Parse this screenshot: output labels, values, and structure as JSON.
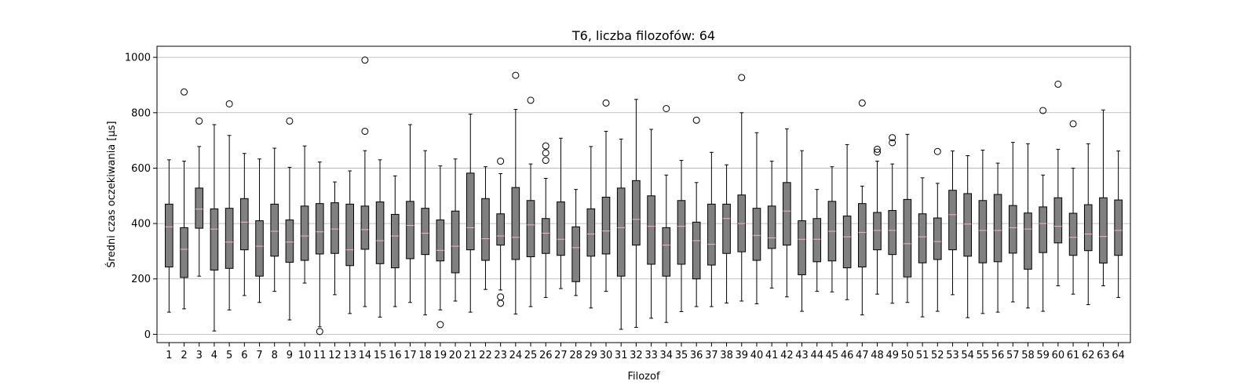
{
  "chart_data": {
    "type": "boxplot",
    "title": "T6, liczba filozofów: 64",
    "xlabel": "Filozof",
    "ylabel": "Średni czas oczekiwania [µs]",
    "ylim": [
      -30,
      1040
    ],
    "yticks": [
      0,
      200,
      400,
      600,
      800,
      1000
    ],
    "grid": "horizontal",
    "colors": {
      "box_fill": "#808080",
      "median": "#f4b6c2",
      "edge": "#000000",
      "grid": "#b0b0b0"
    },
    "categories": [
      "1",
      "2",
      "3",
      "4",
      "5",
      "6",
      "7",
      "8",
      "9",
      "10",
      "11",
      "12",
      "13",
      "14",
      "15",
      "16",
      "17",
      "18",
      "19",
      "20",
      "21",
      "22",
      "23",
      "24",
      "25",
      "26",
      "27",
      "28",
      "29",
      "30",
      "31",
      "32",
      "33",
      "34",
      "35",
      "36",
      "37",
      "38",
      "39",
      "40",
      "41",
      "42",
      "43",
      "44",
      "45",
      "46",
      "47",
      "48",
      "49",
      "50",
      "51",
      "52",
      "53",
      "54",
      "55",
      "56",
      "57",
      "58",
      "59",
      "60",
      "61",
      "62",
      "63",
      "64"
    ],
    "boxes": [
      {
        "whislo": 80,
        "q1": 243,
        "med": 388,
        "q3": 470,
        "whishi": 630,
        "fliers": []
      },
      {
        "whislo": 92,
        "q1": 205,
        "med": 307,
        "q3": 385,
        "whishi": 625,
        "fliers": [
          875
        ]
      },
      {
        "whislo": 210,
        "q1": 383,
        "med": 452,
        "q3": 528,
        "whishi": 678,
        "fliers": [
          770
        ]
      },
      {
        "whislo": 12,
        "q1": 232,
        "med": 380,
        "q3": 453,
        "whishi": 757,
        "fliers": []
      },
      {
        "whislo": 88,
        "q1": 238,
        "med": 333,
        "q3": 455,
        "whishi": 718,
        "fliers": [
          832
        ]
      },
      {
        "whislo": 140,
        "q1": 305,
        "med": 405,
        "q3": 490,
        "whishi": 653,
        "fliers": []
      },
      {
        "whislo": 115,
        "q1": 210,
        "med": 318,
        "q3": 410,
        "whishi": 633,
        "fliers": []
      },
      {
        "whislo": 155,
        "q1": 282,
        "med": 372,
        "q3": 470,
        "whishi": 672,
        "fliers": []
      },
      {
        "whislo": 52,
        "q1": 260,
        "med": 333,
        "q3": 413,
        "whishi": 603,
        "fliers": [
          770
        ]
      },
      {
        "whislo": 185,
        "q1": 267,
        "med": 355,
        "q3": 463,
        "whishi": 680,
        "fliers": []
      },
      {
        "whislo": 27,
        "q1": 290,
        "med": 370,
        "q3": 472,
        "whishi": 622,
        "fliers": [
          10
        ]
      },
      {
        "whislo": 143,
        "q1": 292,
        "med": 380,
        "q3": 475,
        "whishi": 550,
        "fliers": []
      },
      {
        "whislo": 75,
        "q1": 248,
        "med": 305,
        "q3": 470,
        "whishi": 590,
        "fliers": []
      },
      {
        "whislo": 100,
        "q1": 307,
        "med": 378,
        "q3": 463,
        "whishi": 663,
        "fliers": [
          733,
          990
        ]
      },
      {
        "whislo": 62,
        "q1": 255,
        "med": 338,
        "q3": 478,
        "whishi": 630,
        "fliers": []
      },
      {
        "whislo": 100,
        "q1": 240,
        "med": 355,
        "q3": 433,
        "whishi": 572,
        "fliers": []
      },
      {
        "whislo": 115,
        "q1": 273,
        "med": 393,
        "q3": 480,
        "whishi": 757,
        "fliers": []
      },
      {
        "whislo": 70,
        "q1": 288,
        "med": 365,
        "q3": 455,
        "whishi": 663,
        "fliers": []
      },
      {
        "whislo": 88,
        "q1": 265,
        "med": 303,
        "q3": 413,
        "whishi": 608,
        "fliers": [
          35
        ]
      },
      {
        "whislo": 120,
        "q1": 222,
        "med": 318,
        "q3": 445,
        "whishi": 633,
        "fliers": []
      },
      {
        "whislo": 80,
        "q1": 305,
        "med": 385,
        "q3": 582,
        "whishi": 795,
        "fliers": []
      },
      {
        "whislo": 162,
        "q1": 267,
        "med": 345,
        "q3": 490,
        "whishi": 605,
        "fliers": []
      },
      {
        "whislo": 160,
        "q1": 322,
        "med": 355,
        "q3": 435,
        "whishi": 580,
        "fliers": [
          112,
          135,
          625
        ]
      },
      {
        "whislo": 73,
        "q1": 270,
        "med": 350,
        "q3": 530,
        "whishi": 812,
        "fliers": [
          935
        ]
      },
      {
        "whislo": 100,
        "q1": 280,
        "med": 395,
        "q3": 483,
        "whishi": 615,
        "fliers": [
          845
        ]
      },
      {
        "whislo": 133,
        "q1": 292,
        "med": 365,
        "q3": 418,
        "whishi": 563,
        "fliers": [
          628,
          655,
          680
        ]
      },
      {
        "whislo": 165,
        "q1": 285,
        "med": 343,
        "q3": 478,
        "whishi": 708,
        "fliers": []
      },
      {
        "whislo": 140,
        "q1": 190,
        "med": 313,
        "q3": 388,
        "whishi": 523,
        "fliers": []
      },
      {
        "whislo": 95,
        "q1": 282,
        "med": 362,
        "q3": 453,
        "whishi": 678,
        "fliers": []
      },
      {
        "whislo": 155,
        "q1": 290,
        "med": 373,
        "q3": 495,
        "whishi": 733,
        "fliers": [
          835
        ]
      },
      {
        "whislo": 18,
        "q1": 210,
        "med": 385,
        "q3": 528,
        "whishi": 705,
        "fliers": []
      },
      {
        "whislo": 25,
        "q1": 322,
        "med": 415,
        "q3": 555,
        "whishi": 848,
        "fliers": []
      },
      {
        "whislo": 58,
        "q1": 253,
        "med": 390,
        "q3": 500,
        "whishi": 740,
        "fliers": []
      },
      {
        "whislo": 43,
        "q1": 210,
        "med": 322,
        "q3": 385,
        "whishi": 575,
        "fliers": [
          815
        ]
      },
      {
        "whislo": 82,
        "q1": 253,
        "med": 390,
        "q3": 483,
        "whishi": 628,
        "fliers": []
      },
      {
        "whislo": 100,
        "q1": 200,
        "med": 338,
        "q3": 405,
        "whishi": 548,
        "fliers": [
          773
        ]
      },
      {
        "whislo": 100,
        "q1": 250,
        "med": 325,
        "q3": 470,
        "whishi": 657,
        "fliers": []
      },
      {
        "whislo": 113,
        "q1": 292,
        "med": 418,
        "q3": 470,
        "whishi": 612,
        "fliers": []
      },
      {
        "whislo": 120,
        "q1": 298,
        "med": 400,
        "q3": 503,
        "whishi": 800,
        "fliers": [
          927
        ]
      },
      {
        "whislo": 110,
        "q1": 267,
        "med": 357,
        "q3": 455,
        "whishi": 728,
        "fliers": []
      },
      {
        "whislo": 167,
        "q1": 310,
        "med": 348,
        "q3": 463,
        "whishi": 625,
        "fliers": []
      },
      {
        "whislo": 135,
        "q1": 322,
        "med": 445,
        "q3": 548,
        "whishi": 742,
        "fliers": []
      },
      {
        "whislo": 83,
        "q1": 215,
        "med": 343,
        "q3": 410,
        "whishi": 663,
        "fliers": []
      },
      {
        "whislo": 155,
        "q1": 262,
        "med": 343,
        "q3": 418,
        "whishi": 523,
        "fliers": []
      },
      {
        "whislo": 153,
        "q1": 265,
        "med": 372,
        "q3": 480,
        "whishi": 605,
        "fliers": []
      },
      {
        "whislo": 125,
        "q1": 240,
        "med": 352,
        "q3": 427,
        "whishi": 685,
        "fliers": []
      },
      {
        "whislo": 70,
        "q1": 243,
        "med": 368,
        "q3": 472,
        "whishi": 535,
        "fliers": [
          835
        ]
      },
      {
        "whislo": 145,
        "q1": 305,
        "med": 375,
        "q3": 440,
        "whishi": 625,
        "fliers": [
          658,
          668
        ]
      },
      {
        "whislo": 112,
        "q1": 288,
        "med": 375,
        "q3": 447,
        "whishi": 615,
        "fliers": [
          692,
          710
        ]
      },
      {
        "whislo": 115,
        "q1": 207,
        "med": 327,
        "q3": 487,
        "whishi": 722,
        "fliers": []
      },
      {
        "whislo": 63,
        "q1": 258,
        "med": 352,
        "q3": 435,
        "whishi": 565,
        "fliers": []
      },
      {
        "whislo": 83,
        "q1": 270,
        "med": 335,
        "q3": 420,
        "whishi": 545,
        "fliers": [
          660
        ]
      },
      {
        "whislo": 143,
        "q1": 305,
        "med": 432,
        "q3": 520,
        "whishi": 662,
        "fliers": []
      },
      {
        "whislo": 60,
        "q1": 282,
        "med": 398,
        "q3": 508,
        "whishi": 645,
        "fliers": []
      },
      {
        "whislo": 75,
        "q1": 258,
        "med": 375,
        "q3": 483,
        "whishi": 665,
        "fliers": []
      },
      {
        "whislo": 80,
        "q1": 262,
        "med": 375,
        "q3": 505,
        "whishi": 618,
        "fliers": []
      },
      {
        "whislo": 117,
        "q1": 293,
        "med": 385,
        "q3": 465,
        "whishi": 693,
        "fliers": []
      },
      {
        "whislo": 95,
        "q1": 235,
        "med": 380,
        "q3": 438,
        "whishi": 688,
        "fliers": []
      },
      {
        "whislo": 83,
        "q1": 295,
        "med": 400,
        "q3": 460,
        "whishi": 575,
        "fliers": [
          808
        ]
      },
      {
        "whislo": 175,
        "q1": 330,
        "med": 390,
        "q3": 493,
        "whishi": 668,
        "fliers": [
          903
        ]
      },
      {
        "whislo": 145,
        "q1": 285,
        "med": 350,
        "q3": 437,
        "whishi": 600,
        "fliers": [
          760
        ]
      },
      {
        "whislo": 107,
        "q1": 302,
        "med": 362,
        "q3": 468,
        "whishi": 688,
        "fliers": []
      },
      {
        "whislo": 175,
        "q1": 257,
        "med": 353,
        "q3": 493,
        "whishi": 810,
        "fliers": []
      },
      {
        "whislo": 133,
        "q1": 285,
        "med": 375,
        "q3": 485,
        "whishi": 662,
        "fliers": []
      }
    ]
  }
}
